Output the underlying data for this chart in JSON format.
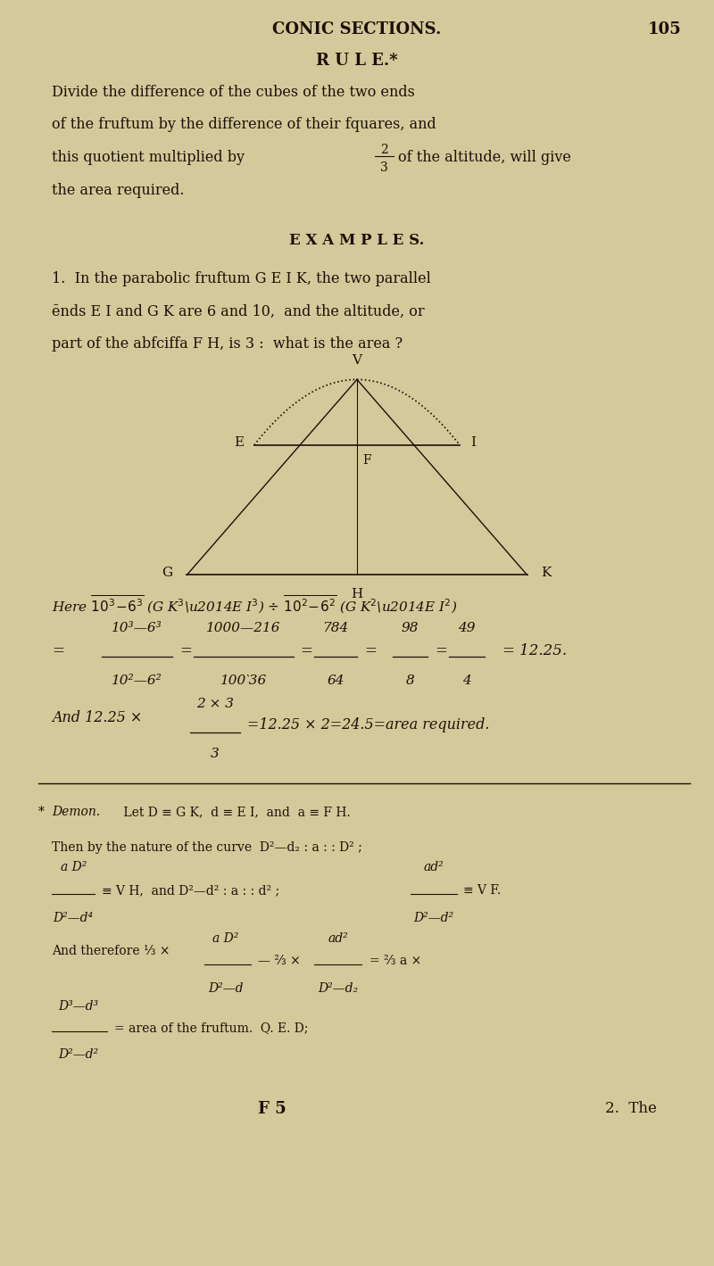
{
  "bg_color": "#d4c99a",
  "text_color": "#1a1008",
  "page_width": 8.0,
  "page_height": 14.19,
  "header_title": "CONIC SECTIONS.",
  "header_page": "105",
  "rule_title": "R U L E.*",
  "examples_title": "E X A M P L E S.",
  "footer_f5": "F 5",
  "footer_2the": "2.  The"
}
